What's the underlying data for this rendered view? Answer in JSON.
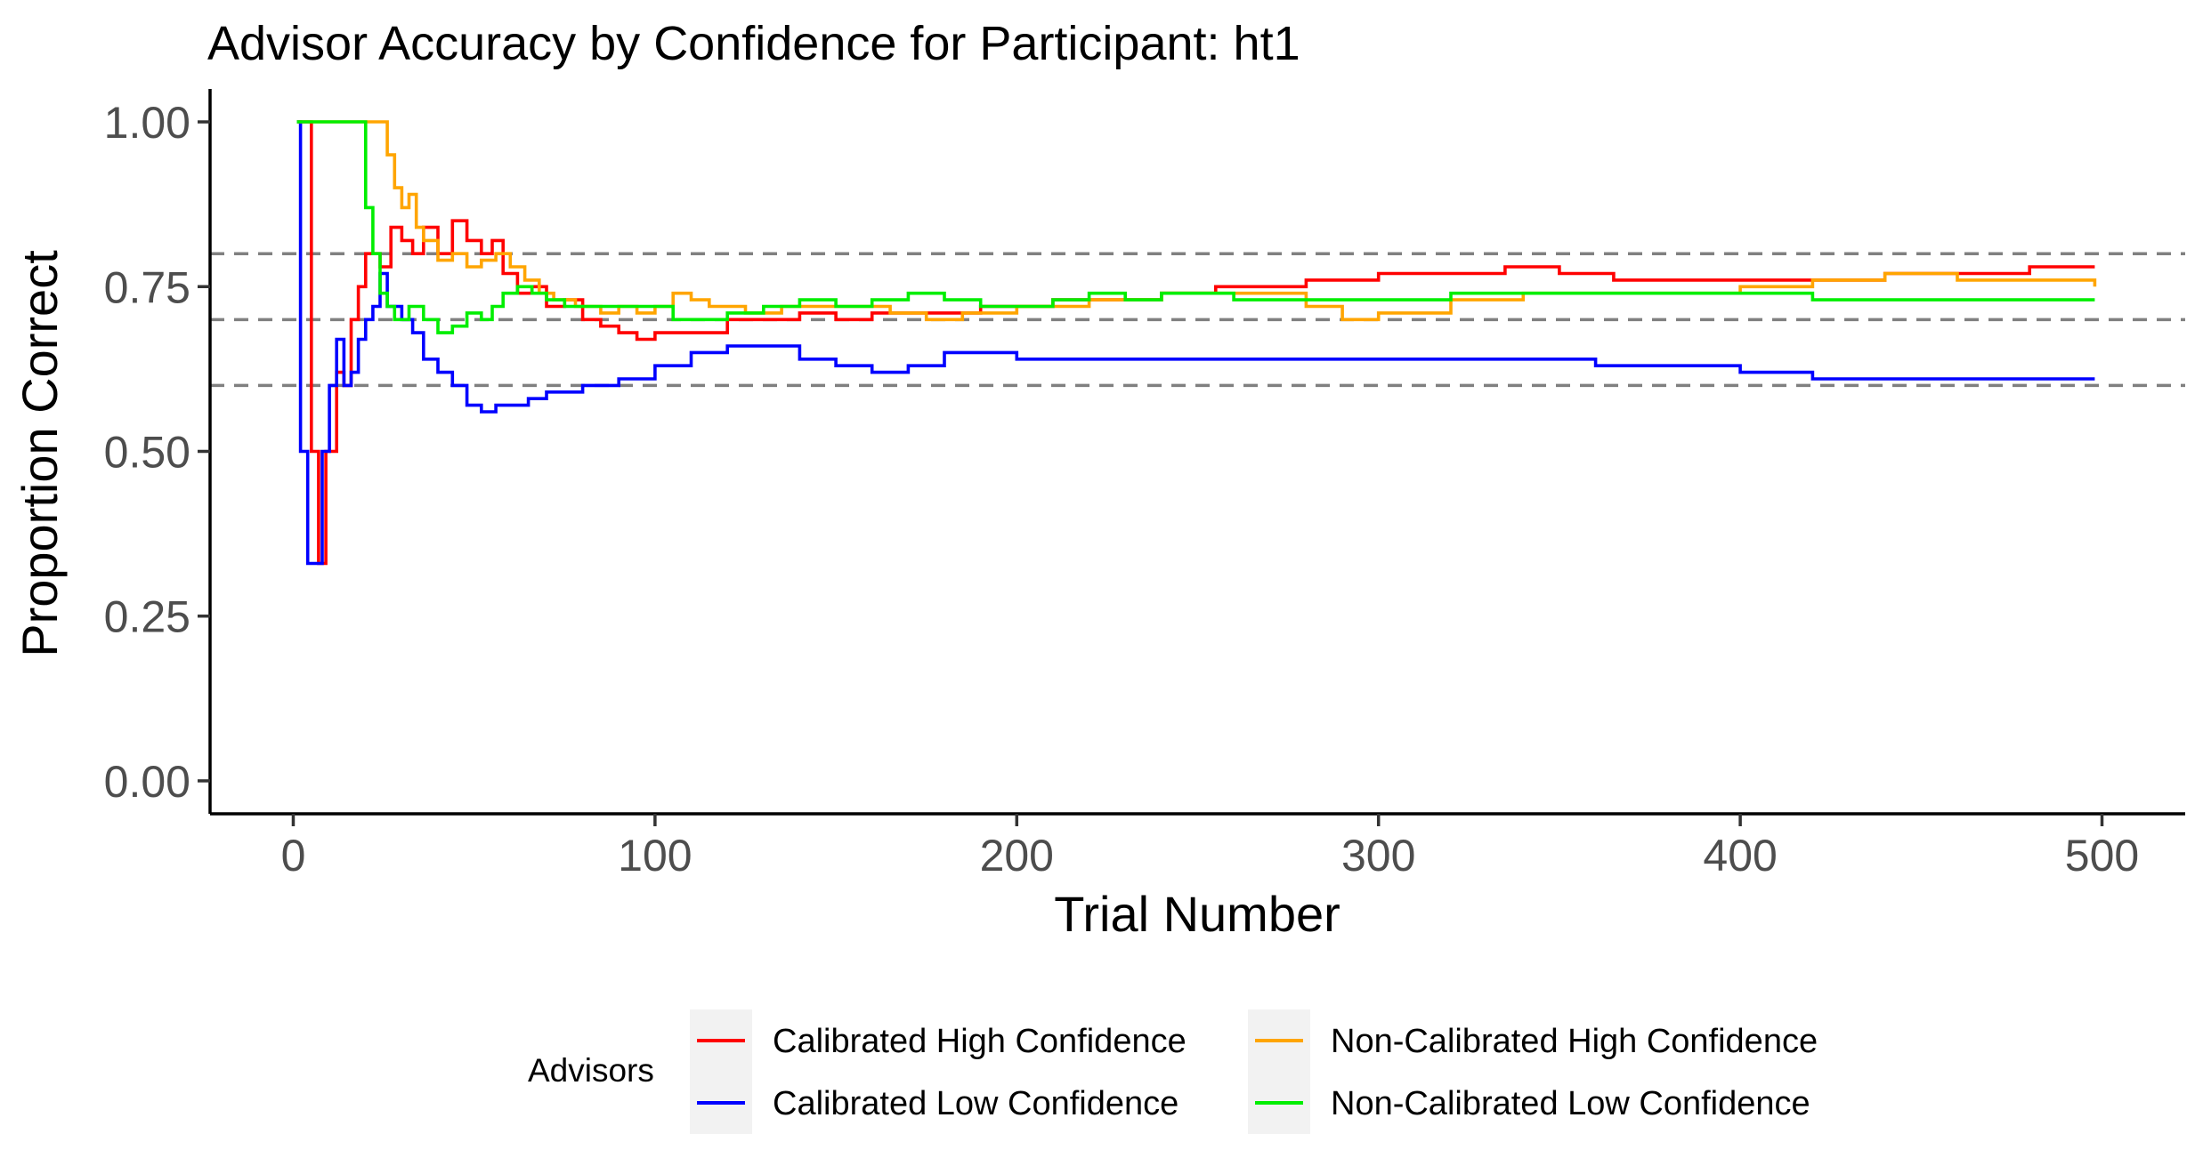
{
  "chart_data": {
    "type": "line",
    "title": "Advisor Accuracy by Confidence for Participant: ht1",
    "xlabel": "Trial Number",
    "ylabel": "Proportion Correct",
    "xlim": [
      -23,
      523
    ],
    "ylim": [
      -0.05,
      1.05
    ],
    "x_ticks": [
      "0",
      "100",
      "200",
      "300",
      "400",
      "500"
    ],
    "y_ticks": [
      "0.00",
      "0.25",
      "0.50",
      "0.75",
      "1.00"
    ],
    "reference_lines": [
      0.6,
      0.7,
      0.8
    ],
    "grid": false,
    "legend": {
      "title": "Advisors",
      "position": "bottom"
    },
    "series": [
      {
        "name": "Calibrated High Confidence",
        "color": "#ff0000",
        "points": [
          [
            1,
            1.0
          ],
          [
            5,
            1.0
          ],
          [
            5,
            0.5
          ],
          [
            7,
            0.5
          ],
          [
            7,
            0.33
          ],
          [
            9,
            0.33
          ],
          [
            9,
            0.5
          ],
          [
            12,
            0.5
          ],
          [
            12,
            0.62
          ],
          [
            14,
            0.6
          ],
          [
            16,
            0.7
          ],
          [
            18,
            0.75
          ],
          [
            20,
            0.8
          ],
          [
            24,
            0.78
          ],
          [
            27,
            0.84
          ],
          [
            30,
            0.82
          ],
          [
            33,
            0.8
          ],
          [
            36,
            0.84
          ],
          [
            40,
            0.8
          ],
          [
            44,
            0.85
          ],
          [
            48,
            0.82
          ],
          [
            52,
            0.8
          ],
          [
            55,
            0.82
          ],
          [
            58,
            0.77
          ],
          [
            62,
            0.74
          ],
          [
            66,
            0.75
          ],
          [
            70,
            0.72
          ],
          [
            75,
            0.73
          ],
          [
            80,
            0.7
          ],
          [
            85,
            0.69
          ],
          [
            90,
            0.68
          ],
          [
            95,
            0.67
          ],
          [
            100,
            0.68
          ],
          [
            110,
            0.68
          ],
          [
            120,
            0.7
          ],
          [
            130,
            0.7
          ],
          [
            140,
            0.71
          ],
          [
            150,
            0.7
          ],
          [
            160,
            0.71
          ],
          [
            175,
            0.71
          ],
          [
            190,
            0.72
          ],
          [
            200,
            0.72
          ],
          [
            210,
            0.73
          ],
          [
            225,
            0.73
          ],
          [
            240,
            0.74
          ],
          [
            255,
            0.75
          ],
          [
            265,
            0.75
          ],
          [
            280,
            0.76
          ],
          [
            300,
            0.77
          ],
          [
            320,
            0.77
          ],
          [
            335,
            0.78
          ],
          [
            350,
            0.77
          ],
          [
            365,
            0.76
          ],
          [
            380,
            0.76
          ],
          [
            400,
            0.76
          ],
          [
            420,
            0.76
          ],
          [
            440,
            0.77
          ],
          [
            460,
            0.77
          ],
          [
            480,
            0.78
          ],
          [
            498,
            0.78
          ]
        ]
      },
      {
        "name": "Calibrated Low Confidence",
        "color": "#0000ff",
        "points": [
          [
            1,
            1.0
          ],
          [
            2,
            1.0
          ],
          [
            2,
            0.5
          ],
          [
            4,
            0.5
          ],
          [
            4,
            0.33
          ],
          [
            8,
            0.33
          ],
          [
            8,
            0.5
          ],
          [
            10,
            0.6
          ],
          [
            12,
            0.67
          ],
          [
            14,
            0.6
          ],
          [
            16,
            0.62
          ],
          [
            18,
            0.67
          ],
          [
            20,
            0.7
          ],
          [
            22,
            0.72
          ],
          [
            24,
            0.77
          ],
          [
            26,
            0.72
          ],
          [
            30,
            0.7
          ],
          [
            33,
            0.68
          ],
          [
            36,
            0.64
          ],
          [
            40,
            0.62
          ],
          [
            44,
            0.6
          ],
          [
            48,
            0.57
          ],
          [
            52,
            0.56
          ],
          [
            56,
            0.57
          ],
          [
            60,
            0.57
          ],
          [
            65,
            0.58
          ],
          [
            70,
            0.59
          ],
          [
            75,
            0.59
          ],
          [
            80,
            0.6
          ],
          [
            90,
            0.61
          ],
          [
            100,
            0.63
          ],
          [
            110,
            0.65
          ],
          [
            120,
            0.66
          ],
          [
            130,
            0.66
          ],
          [
            140,
            0.64
          ],
          [
            150,
            0.63
          ],
          [
            160,
            0.62
          ],
          [
            170,
            0.63
          ],
          [
            180,
            0.65
          ],
          [
            200,
            0.64
          ],
          [
            220,
            0.64
          ],
          [
            240,
            0.64
          ],
          [
            260,
            0.64
          ],
          [
            280,
            0.64
          ],
          [
            300,
            0.64
          ],
          [
            320,
            0.64
          ],
          [
            340,
            0.64
          ],
          [
            360,
            0.63
          ],
          [
            380,
            0.63
          ],
          [
            400,
            0.62
          ],
          [
            420,
            0.61
          ],
          [
            440,
            0.61
          ],
          [
            460,
            0.61
          ],
          [
            480,
            0.61
          ],
          [
            498,
            0.61
          ]
        ]
      },
      {
        "name": "Non-Calibrated High Confidence",
        "color": "#ffa500",
        "points": [
          [
            1,
            1.0
          ],
          [
            24,
            1.0
          ],
          [
            26,
            0.95
          ],
          [
            28,
            0.9
          ],
          [
            30,
            0.87
          ],
          [
            32,
            0.89
          ],
          [
            34,
            0.84
          ],
          [
            36,
            0.82
          ],
          [
            40,
            0.79
          ],
          [
            44,
            0.8
          ],
          [
            48,
            0.78
          ],
          [
            52,
            0.79
          ],
          [
            56,
            0.8
          ],
          [
            60,
            0.78
          ],
          [
            64,
            0.76
          ],
          [
            68,
            0.74
          ],
          [
            72,
            0.73
          ],
          [
            78,
            0.72
          ],
          [
            85,
            0.71
          ],
          [
            90,
            0.72
          ],
          [
            95,
            0.71
          ],
          [
            100,
            0.72
          ],
          [
            105,
            0.74
          ],
          [
            110,
            0.73
          ],
          [
            115,
            0.72
          ],
          [
            125,
            0.71
          ],
          [
            135,
            0.72
          ],
          [
            150,
            0.72
          ],
          [
            165,
            0.71
          ],
          [
            175,
            0.7
          ],
          [
            185,
            0.71
          ],
          [
            200,
            0.72
          ],
          [
            220,
            0.73
          ],
          [
            240,
            0.74
          ],
          [
            260,
            0.74
          ],
          [
            280,
            0.72
          ],
          [
            290,
            0.7
          ],
          [
            300,
            0.71
          ],
          [
            320,
            0.73
          ],
          [
            340,
            0.74
          ],
          [
            360,
            0.74
          ],
          [
            380,
            0.74
          ],
          [
            400,
            0.75
          ],
          [
            420,
            0.76
          ],
          [
            440,
            0.77
          ],
          [
            460,
            0.76
          ],
          [
            480,
            0.76
          ],
          [
            498,
            0.75
          ]
        ]
      },
      {
        "name": "Non-Calibrated Low Confidence",
        "color": "#00ee00",
        "points": [
          [
            1,
            1.0
          ],
          [
            18,
            1.0
          ],
          [
            20,
            0.87
          ],
          [
            22,
            0.8
          ],
          [
            24,
            0.74
          ],
          [
            26,
            0.72
          ],
          [
            28,
            0.7
          ],
          [
            32,
            0.72
          ],
          [
            36,
            0.7
          ],
          [
            40,
            0.68
          ],
          [
            44,
            0.69
          ],
          [
            48,
            0.71
          ],
          [
            52,
            0.7
          ],
          [
            55,
            0.72
          ],
          [
            58,
            0.74
          ],
          [
            62,
            0.75
          ],
          [
            66,
            0.74
          ],
          [
            70,
            0.73
          ],
          [
            75,
            0.72
          ],
          [
            80,
            0.72
          ],
          [
            90,
            0.72
          ],
          [
            100,
            0.72
          ],
          [
            105,
            0.7
          ],
          [
            110,
            0.7
          ],
          [
            120,
            0.71
          ],
          [
            130,
            0.72
          ],
          [
            140,
            0.73
          ],
          [
            150,
            0.72
          ],
          [
            160,
            0.73
          ],
          [
            170,
            0.74
          ],
          [
            180,
            0.73
          ],
          [
            190,
            0.72
          ],
          [
            200,
            0.72
          ],
          [
            210,
            0.73
          ],
          [
            220,
            0.74
          ],
          [
            230,
            0.73
          ],
          [
            240,
            0.74
          ],
          [
            260,
            0.73
          ],
          [
            280,
            0.73
          ],
          [
            300,
            0.73
          ],
          [
            320,
            0.74
          ],
          [
            340,
            0.74
          ],
          [
            360,
            0.74
          ],
          [
            380,
            0.74
          ],
          [
            400,
            0.74
          ],
          [
            420,
            0.73
          ],
          [
            440,
            0.73
          ],
          [
            460,
            0.73
          ],
          [
            480,
            0.73
          ],
          [
            498,
            0.73
          ]
        ]
      }
    ]
  }
}
